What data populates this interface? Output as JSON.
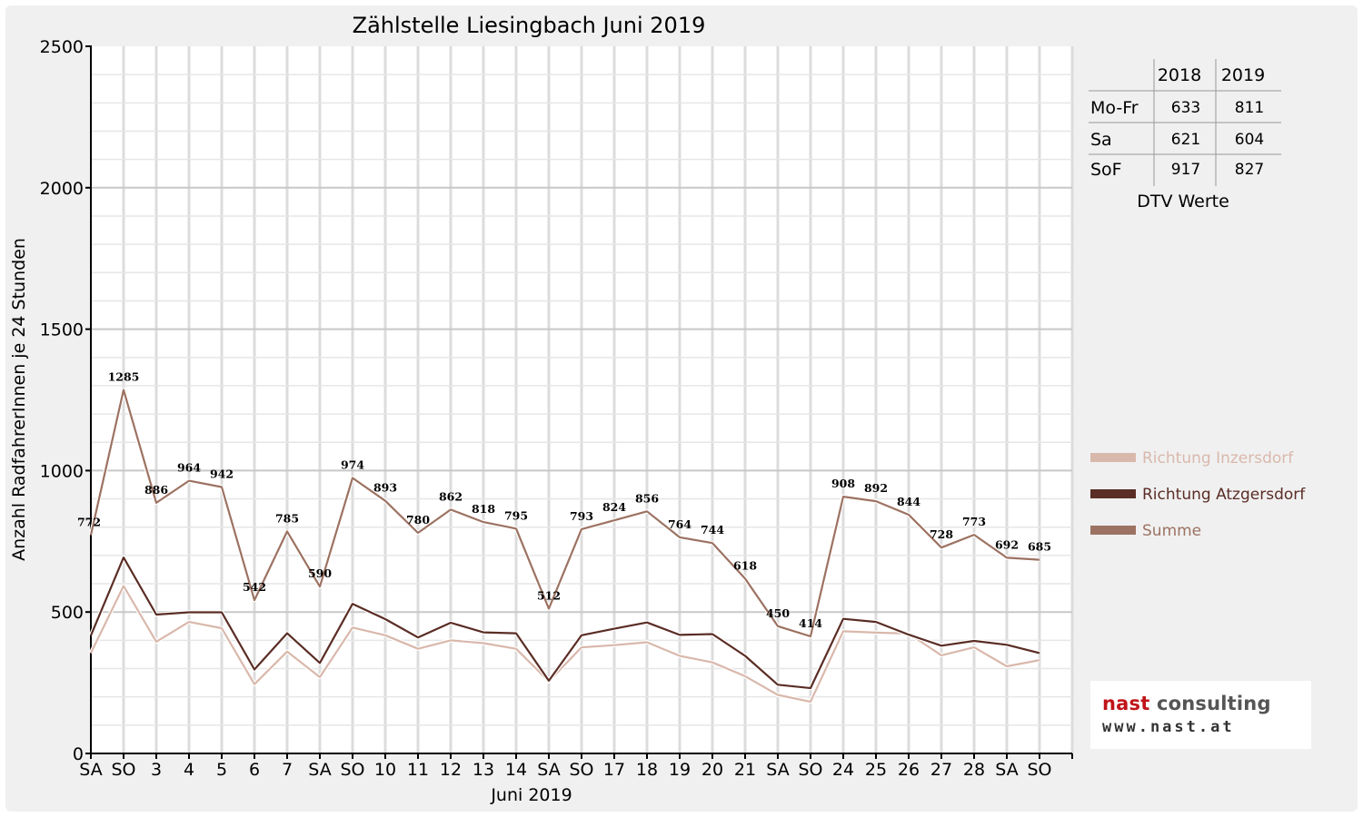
{
  "chart_data": {
    "type": "line",
    "title": "Zählstelle Liesingbach Juni 2019",
    "ylabel": "Anzahl RadfahrerInnen je 24 Stunden",
    "xlabel": "Juni 2019",
    "ylim": [
      0,
      2500
    ],
    "yticks": [
      "0",
      "500",
      "1000",
      "1500",
      "2000",
      "2500"
    ],
    "grid": true,
    "legend_position": "right",
    "categories": [
      "SA",
      "SO",
      "3",
      "4",
      "5",
      "6",
      "7",
      "SA",
      "SO",
      "10",
      "11",
      "12",
      "13",
      "14",
      "SA",
      "SO",
      "17",
      "18",
      "19",
      "20",
      "21",
      "SA",
      "SO",
      "24",
      "25",
      "26",
      "27",
      "28",
      "SA",
      "SO"
    ],
    "red_categories": [
      1,
      8,
      9,
      15,
      19,
      22,
      29
    ],
    "series": [
      {
        "name": "Richtung Inzersdorf",
        "color": "#d9b8ac",
        "values": [
          355,
          592,
          395,
          465,
          443,
          245,
          360,
          270,
          445,
          418,
          370,
          400,
          390,
          370,
          255,
          375,
          383,
          393,
          345,
          322,
          273,
          207,
          183,
          432,
          427,
          424,
          347,
          375,
          308,
          330
        ]
      },
      {
        "name": "Richtung Atzgersdorf",
        "color": "#5a2d25",
        "values": [
          417,
          693,
          491,
          499,
          499,
          297,
          425,
          320,
          529,
          475,
          410,
          462,
          428,
          425,
          257,
          418,
          441,
          463,
          419,
          422,
          345,
          243,
          231,
          476,
          465,
          420,
          381,
          398,
          384,
          355
        ]
      },
      {
        "name": "Summe",
        "color": "#9c7262",
        "values": [
          772,
          1285,
          886,
          964,
          942,
          542,
          785,
          590,
          974,
          893,
          780,
          862,
          818,
          795,
          512,
          793,
          824,
          856,
          764,
          744,
          618,
          450,
          414,
          908,
          892,
          844,
          728,
          773,
          692,
          685
        ]
      }
    ],
    "summe_labels": [
      "772",
      "1285",
      "886",
      "964",
      "942",
      "542",
      "785",
      "590",
      "974",
      "893",
      "780",
      "862",
      "818",
      "795",
      "512",
      "793",
      "824",
      "856",
      "764",
      "744",
      "618",
      "450",
      "414",
      "908",
      "892",
      "844",
      "728",
      "773",
      "692",
      "685"
    ]
  },
  "dtv_table": {
    "columns": [
      "2018",
      "2019"
    ],
    "rows": [
      {
        "label": "Mo-Fr",
        "v2018": "633",
        "v2019": "811"
      },
      {
        "label": "Sa",
        "v2018": "621",
        "v2019": "604"
      },
      {
        "label": "SoF",
        "v2018": "917",
        "v2019": "827"
      }
    ],
    "caption": "DTV Werte"
  },
  "logo": {
    "part1": "nast ",
    "part2": "consulting",
    "url": "www.nast.at"
  }
}
